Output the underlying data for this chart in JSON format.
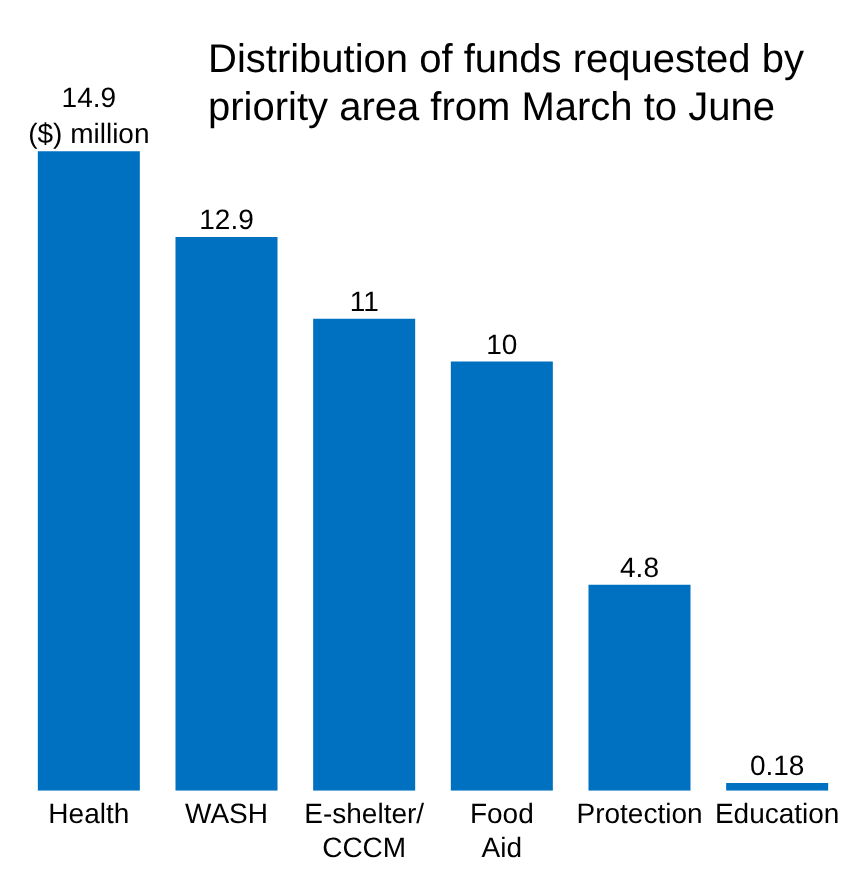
{
  "chart_data": {
    "type": "bar",
    "title": "Distribution of funds requested by priority area from March to June",
    "categories": [
      "Health",
      "WASH",
      "E-shelter/ CCCM",
      "Food Aid",
      "Protection",
      "Education"
    ],
    "values": [
      14.9,
      12.9,
      11,
      10,
      4.8,
      0.18
    ],
    "color": "#0070c0",
    "data_labels": true,
    "annotations": [
      {
        "text": "($) million",
        "x": "Health",
        "y": 14.9
      }
    ],
    "grid": false,
    "legend": false
  }
}
